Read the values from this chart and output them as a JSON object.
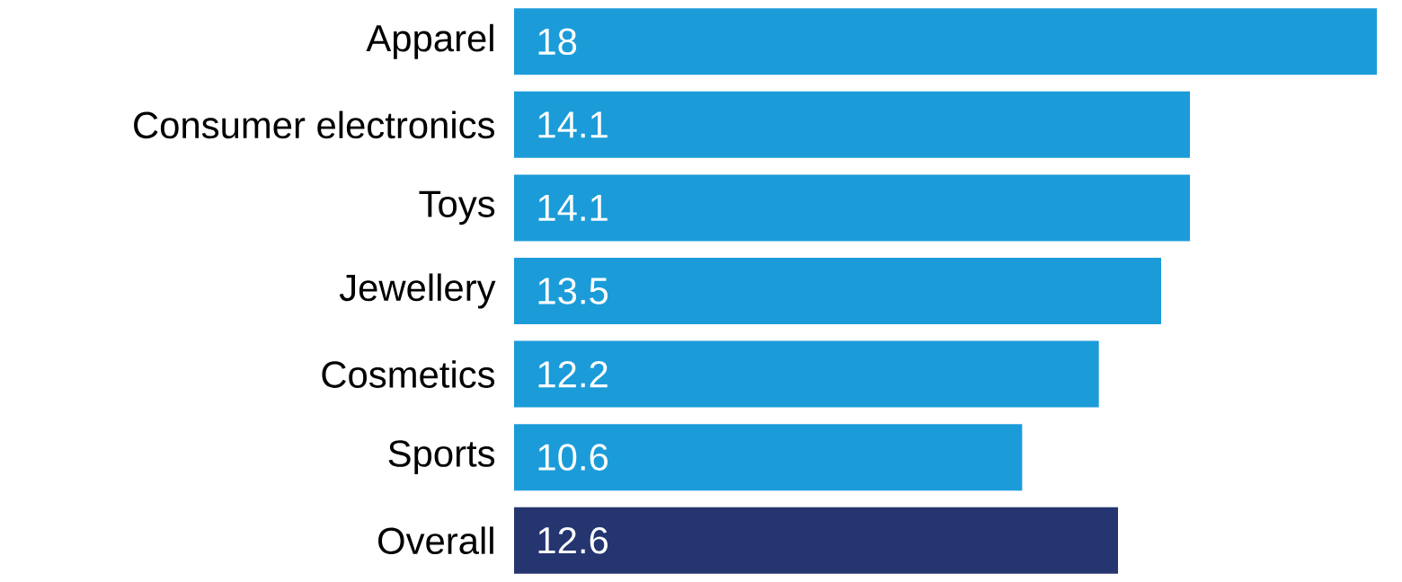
{
  "chart_data": {
    "type": "bar",
    "orientation": "horizontal",
    "categories": [
      "Apparel",
      "Consumer electronics",
      "Toys",
      "Jewellery",
      "Cosmetics",
      "Sports",
      "Overall"
    ],
    "values": [
      18,
      14.1,
      14.1,
      13.5,
      12.2,
      10.6,
      12.6
    ],
    "colors": [
      "#1b9cd9",
      "#1b9cd9",
      "#1b9cd9",
      "#1b9cd9",
      "#1b9cd9",
      "#1b9cd9",
      "#243570"
    ],
    "data_labels": true
  }
}
